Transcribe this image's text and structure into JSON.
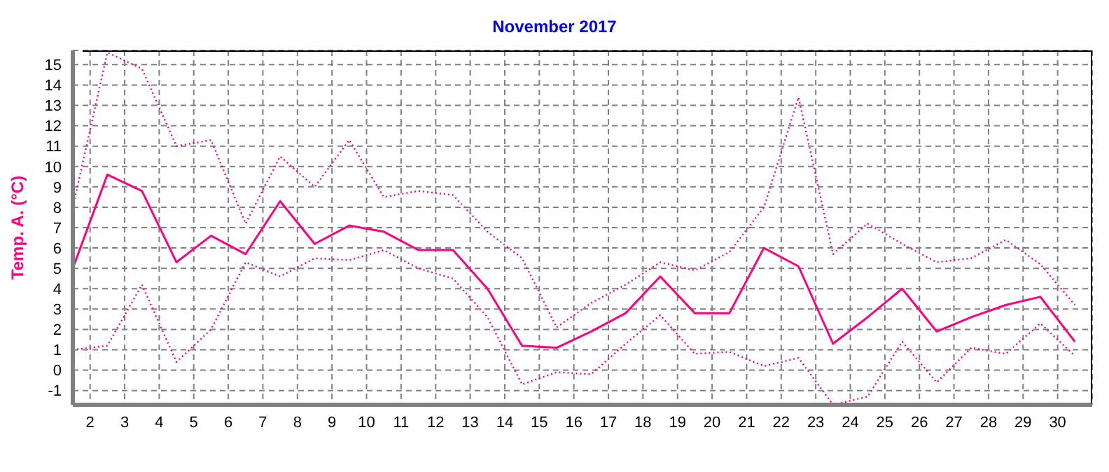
{
  "chart_data": {
    "type": "line",
    "title": "November 2017",
    "ylabel": "Temp. A. (°C)",
    "x": [
      1.5,
      2.5,
      3.5,
      4.5,
      5.5,
      6.5,
      7.5,
      8.5,
      9.5,
      10.5,
      11.5,
      12.5,
      13.5,
      14.5,
      15.5,
      16.5,
      17.5,
      18.5,
      19.5,
      20.5,
      21.5,
      22.5,
      23.5,
      24.5,
      25.5,
      26.5,
      27.5,
      28.5,
      29.5,
      30.5
    ],
    "series": [
      {
        "color": "#ff0080",
        "line_style": "solid",
        "values": [
          5.0,
          9.6,
          8.8,
          5.3,
          6.6,
          5.7,
          8.3,
          6.2,
          7.1,
          6.8,
          5.9,
          5.9,
          4.0,
          1.2,
          1.1,
          1.9,
          2.8,
          4.6,
          2.8,
          2.8,
          6.0,
          5.1,
          1.3,
          2.6,
          4.0,
          1.9,
          2.6,
          3.2,
          3.6,
          1.4
        ]
      },
      {
        "color": "#ff0080",
        "line_style": "dotted",
        "values": [
          1.0,
          1.2,
          4.2,
          0.4,
          2.0,
          5.3,
          4.6,
          5.5,
          5.4,
          5.9,
          5.0,
          4.5,
          2.6,
          -0.7,
          -0.1,
          -0.2,
          1.3,
          2.7,
          0.8,
          0.9,
          0.2,
          0.6,
          -1.7,
          -1.3,
          1.4,
          -0.6,
          1.1,
          0.8,
          2.3,
          0.7
        ]
      },
      {
        "color": "#ff0080",
        "line_style": "dotted",
        "values": [
          8.0,
          15.6,
          14.8,
          11.0,
          11.3,
          7.2,
          10.5,
          9.0,
          11.3,
          8.5,
          8.8,
          8.6,
          6.8,
          5.5,
          2.1,
          3.3,
          4.2,
          5.3,
          4.9,
          5.8,
          8.0,
          13.4,
          5.7,
          7.2,
          6.2,
          5.3,
          5.5,
          6.4,
          5.2,
          3.2
        ]
      }
    ],
    "xlim": [
      1.5,
      31
    ],
    "xticks": [
      2,
      3,
      4,
      5,
      6,
      7,
      8,
      9,
      10,
      11,
      12,
      13,
      14,
      15,
      16,
      17,
      18,
      19,
      20,
      21,
      22,
      23,
      24,
      25,
      26,
      27,
      28,
      29,
      30
    ],
    "ylim": [
      -1.7,
      15.7
    ],
    "yticks": [
      -1,
      0,
      1,
      2,
      3,
      4,
      5,
      6,
      7,
      8,
      9,
      10,
      11,
      12,
      13,
      14,
      15
    ],
    "grid": true,
    "marker": "none"
  }
}
